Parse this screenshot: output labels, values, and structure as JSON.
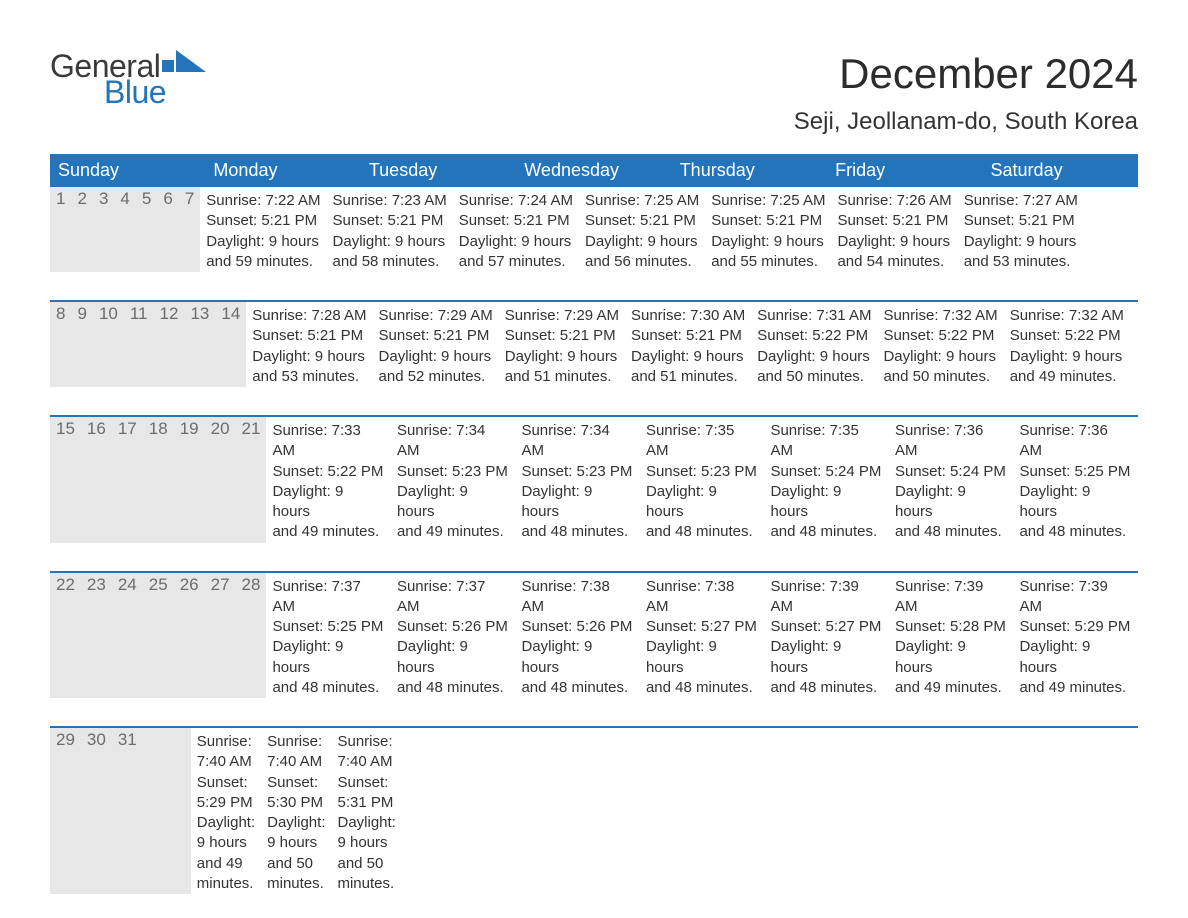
{
  "logo": {
    "general": "General",
    "blue": "Blue",
    "flag_color": "#2374bb"
  },
  "title": {
    "month": "December 2024",
    "location": "Seji, Jeollanam-do, South Korea"
  },
  "colors": {
    "header_bg": "#2374bb",
    "header_text": "#ffffff",
    "daynum_bg": "#e7e7e7",
    "daynum_text": "#6c6c6c",
    "body_text": "#333333",
    "week_border": "#2374bb",
    "page_bg": "#ffffff"
  },
  "typography": {
    "title_fontsize": 42,
    "location_fontsize": 24,
    "weekday_fontsize": 18,
    "daynum_fontsize": 17,
    "body_fontsize": 15,
    "logo_fontsize": 32
  },
  "weekdays": [
    "Sunday",
    "Monday",
    "Tuesday",
    "Wednesday",
    "Thursday",
    "Friday",
    "Saturday"
  ],
  "weeks": [
    [
      {
        "n": "1",
        "sr": "Sunrise: 7:22 AM",
        "ss": "Sunset: 5:21 PM",
        "d1": "Daylight: 9 hours",
        "d2": "and 59 minutes."
      },
      {
        "n": "2",
        "sr": "Sunrise: 7:23 AM",
        "ss": "Sunset: 5:21 PM",
        "d1": "Daylight: 9 hours",
        "d2": "and 58 minutes."
      },
      {
        "n": "3",
        "sr": "Sunrise: 7:24 AM",
        "ss": "Sunset: 5:21 PM",
        "d1": "Daylight: 9 hours",
        "d2": "and 57 minutes."
      },
      {
        "n": "4",
        "sr": "Sunrise: 7:25 AM",
        "ss": "Sunset: 5:21 PM",
        "d1": "Daylight: 9 hours",
        "d2": "and 56 minutes."
      },
      {
        "n": "5",
        "sr": "Sunrise: 7:25 AM",
        "ss": "Sunset: 5:21 PM",
        "d1": "Daylight: 9 hours",
        "d2": "and 55 minutes."
      },
      {
        "n": "6",
        "sr": "Sunrise: 7:26 AM",
        "ss": "Sunset: 5:21 PM",
        "d1": "Daylight: 9 hours",
        "d2": "and 54 minutes."
      },
      {
        "n": "7",
        "sr": "Sunrise: 7:27 AM",
        "ss": "Sunset: 5:21 PM",
        "d1": "Daylight: 9 hours",
        "d2": "and 53 minutes."
      }
    ],
    [
      {
        "n": "8",
        "sr": "Sunrise: 7:28 AM",
        "ss": "Sunset: 5:21 PM",
        "d1": "Daylight: 9 hours",
        "d2": "and 53 minutes."
      },
      {
        "n": "9",
        "sr": "Sunrise: 7:29 AM",
        "ss": "Sunset: 5:21 PM",
        "d1": "Daylight: 9 hours",
        "d2": "and 52 minutes."
      },
      {
        "n": "10",
        "sr": "Sunrise: 7:29 AM",
        "ss": "Sunset: 5:21 PM",
        "d1": "Daylight: 9 hours",
        "d2": "and 51 minutes."
      },
      {
        "n": "11",
        "sr": "Sunrise: 7:30 AM",
        "ss": "Sunset: 5:21 PM",
        "d1": "Daylight: 9 hours",
        "d2": "and 51 minutes."
      },
      {
        "n": "12",
        "sr": "Sunrise: 7:31 AM",
        "ss": "Sunset: 5:22 PM",
        "d1": "Daylight: 9 hours",
        "d2": "and 50 minutes."
      },
      {
        "n": "13",
        "sr": "Sunrise: 7:32 AM",
        "ss": "Sunset: 5:22 PM",
        "d1": "Daylight: 9 hours",
        "d2": "and 50 minutes."
      },
      {
        "n": "14",
        "sr": "Sunrise: 7:32 AM",
        "ss": "Sunset: 5:22 PM",
        "d1": "Daylight: 9 hours",
        "d2": "and 49 minutes."
      }
    ],
    [
      {
        "n": "15",
        "sr": "Sunrise: 7:33 AM",
        "ss": "Sunset: 5:22 PM",
        "d1": "Daylight: 9 hours",
        "d2": "and 49 minutes."
      },
      {
        "n": "16",
        "sr": "Sunrise: 7:34 AM",
        "ss": "Sunset: 5:23 PM",
        "d1": "Daylight: 9 hours",
        "d2": "and 49 minutes."
      },
      {
        "n": "17",
        "sr": "Sunrise: 7:34 AM",
        "ss": "Sunset: 5:23 PM",
        "d1": "Daylight: 9 hours",
        "d2": "and 48 minutes."
      },
      {
        "n": "18",
        "sr": "Sunrise: 7:35 AM",
        "ss": "Sunset: 5:23 PM",
        "d1": "Daylight: 9 hours",
        "d2": "and 48 minutes."
      },
      {
        "n": "19",
        "sr": "Sunrise: 7:35 AM",
        "ss": "Sunset: 5:24 PM",
        "d1": "Daylight: 9 hours",
        "d2": "and 48 minutes."
      },
      {
        "n": "20",
        "sr": "Sunrise: 7:36 AM",
        "ss": "Sunset: 5:24 PM",
        "d1": "Daylight: 9 hours",
        "d2": "and 48 minutes."
      },
      {
        "n": "21",
        "sr": "Sunrise: 7:36 AM",
        "ss": "Sunset: 5:25 PM",
        "d1": "Daylight: 9 hours",
        "d2": "and 48 minutes."
      }
    ],
    [
      {
        "n": "22",
        "sr": "Sunrise: 7:37 AM",
        "ss": "Sunset: 5:25 PM",
        "d1": "Daylight: 9 hours",
        "d2": "and 48 minutes."
      },
      {
        "n": "23",
        "sr": "Sunrise: 7:37 AM",
        "ss": "Sunset: 5:26 PM",
        "d1": "Daylight: 9 hours",
        "d2": "and 48 minutes."
      },
      {
        "n": "24",
        "sr": "Sunrise: 7:38 AM",
        "ss": "Sunset: 5:26 PM",
        "d1": "Daylight: 9 hours",
        "d2": "and 48 minutes."
      },
      {
        "n": "25",
        "sr": "Sunrise: 7:38 AM",
        "ss": "Sunset: 5:27 PM",
        "d1": "Daylight: 9 hours",
        "d2": "and 48 minutes."
      },
      {
        "n": "26",
        "sr": "Sunrise: 7:39 AM",
        "ss": "Sunset: 5:27 PM",
        "d1": "Daylight: 9 hours",
        "d2": "and 48 minutes."
      },
      {
        "n": "27",
        "sr": "Sunrise: 7:39 AM",
        "ss": "Sunset: 5:28 PM",
        "d1": "Daylight: 9 hours",
        "d2": "and 49 minutes."
      },
      {
        "n": "28",
        "sr": "Sunrise: 7:39 AM",
        "ss": "Sunset: 5:29 PM",
        "d1": "Daylight: 9 hours",
        "d2": "and 49 minutes."
      }
    ],
    [
      {
        "n": "29",
        "sr": "Sunrise: 7:40 AM",
        "ss": "Sunset: 5:29 PM",
        "d1": "Daylight: 9 hours",
        "d2": "and 49 minutes."
      },
      {
        "n": "30",
        "sr": "Sunrise: 7:40 AM",
        "ss": "Sunset: 5:30 PM",
        "d1": "Daylight: 9 hours",
        "d2": "and 50 minutes."
      },
      {
        "n": "31",
        "sr": "Sunrise: 7:40 AM",
        "ss": "Sunset: 5:31 PM",
        "d1": "Daylight: 9 hours",
        "d2": "and 50 minutes."
      },
      null,
      null,
      null,
      null
    ]
  ]
}
